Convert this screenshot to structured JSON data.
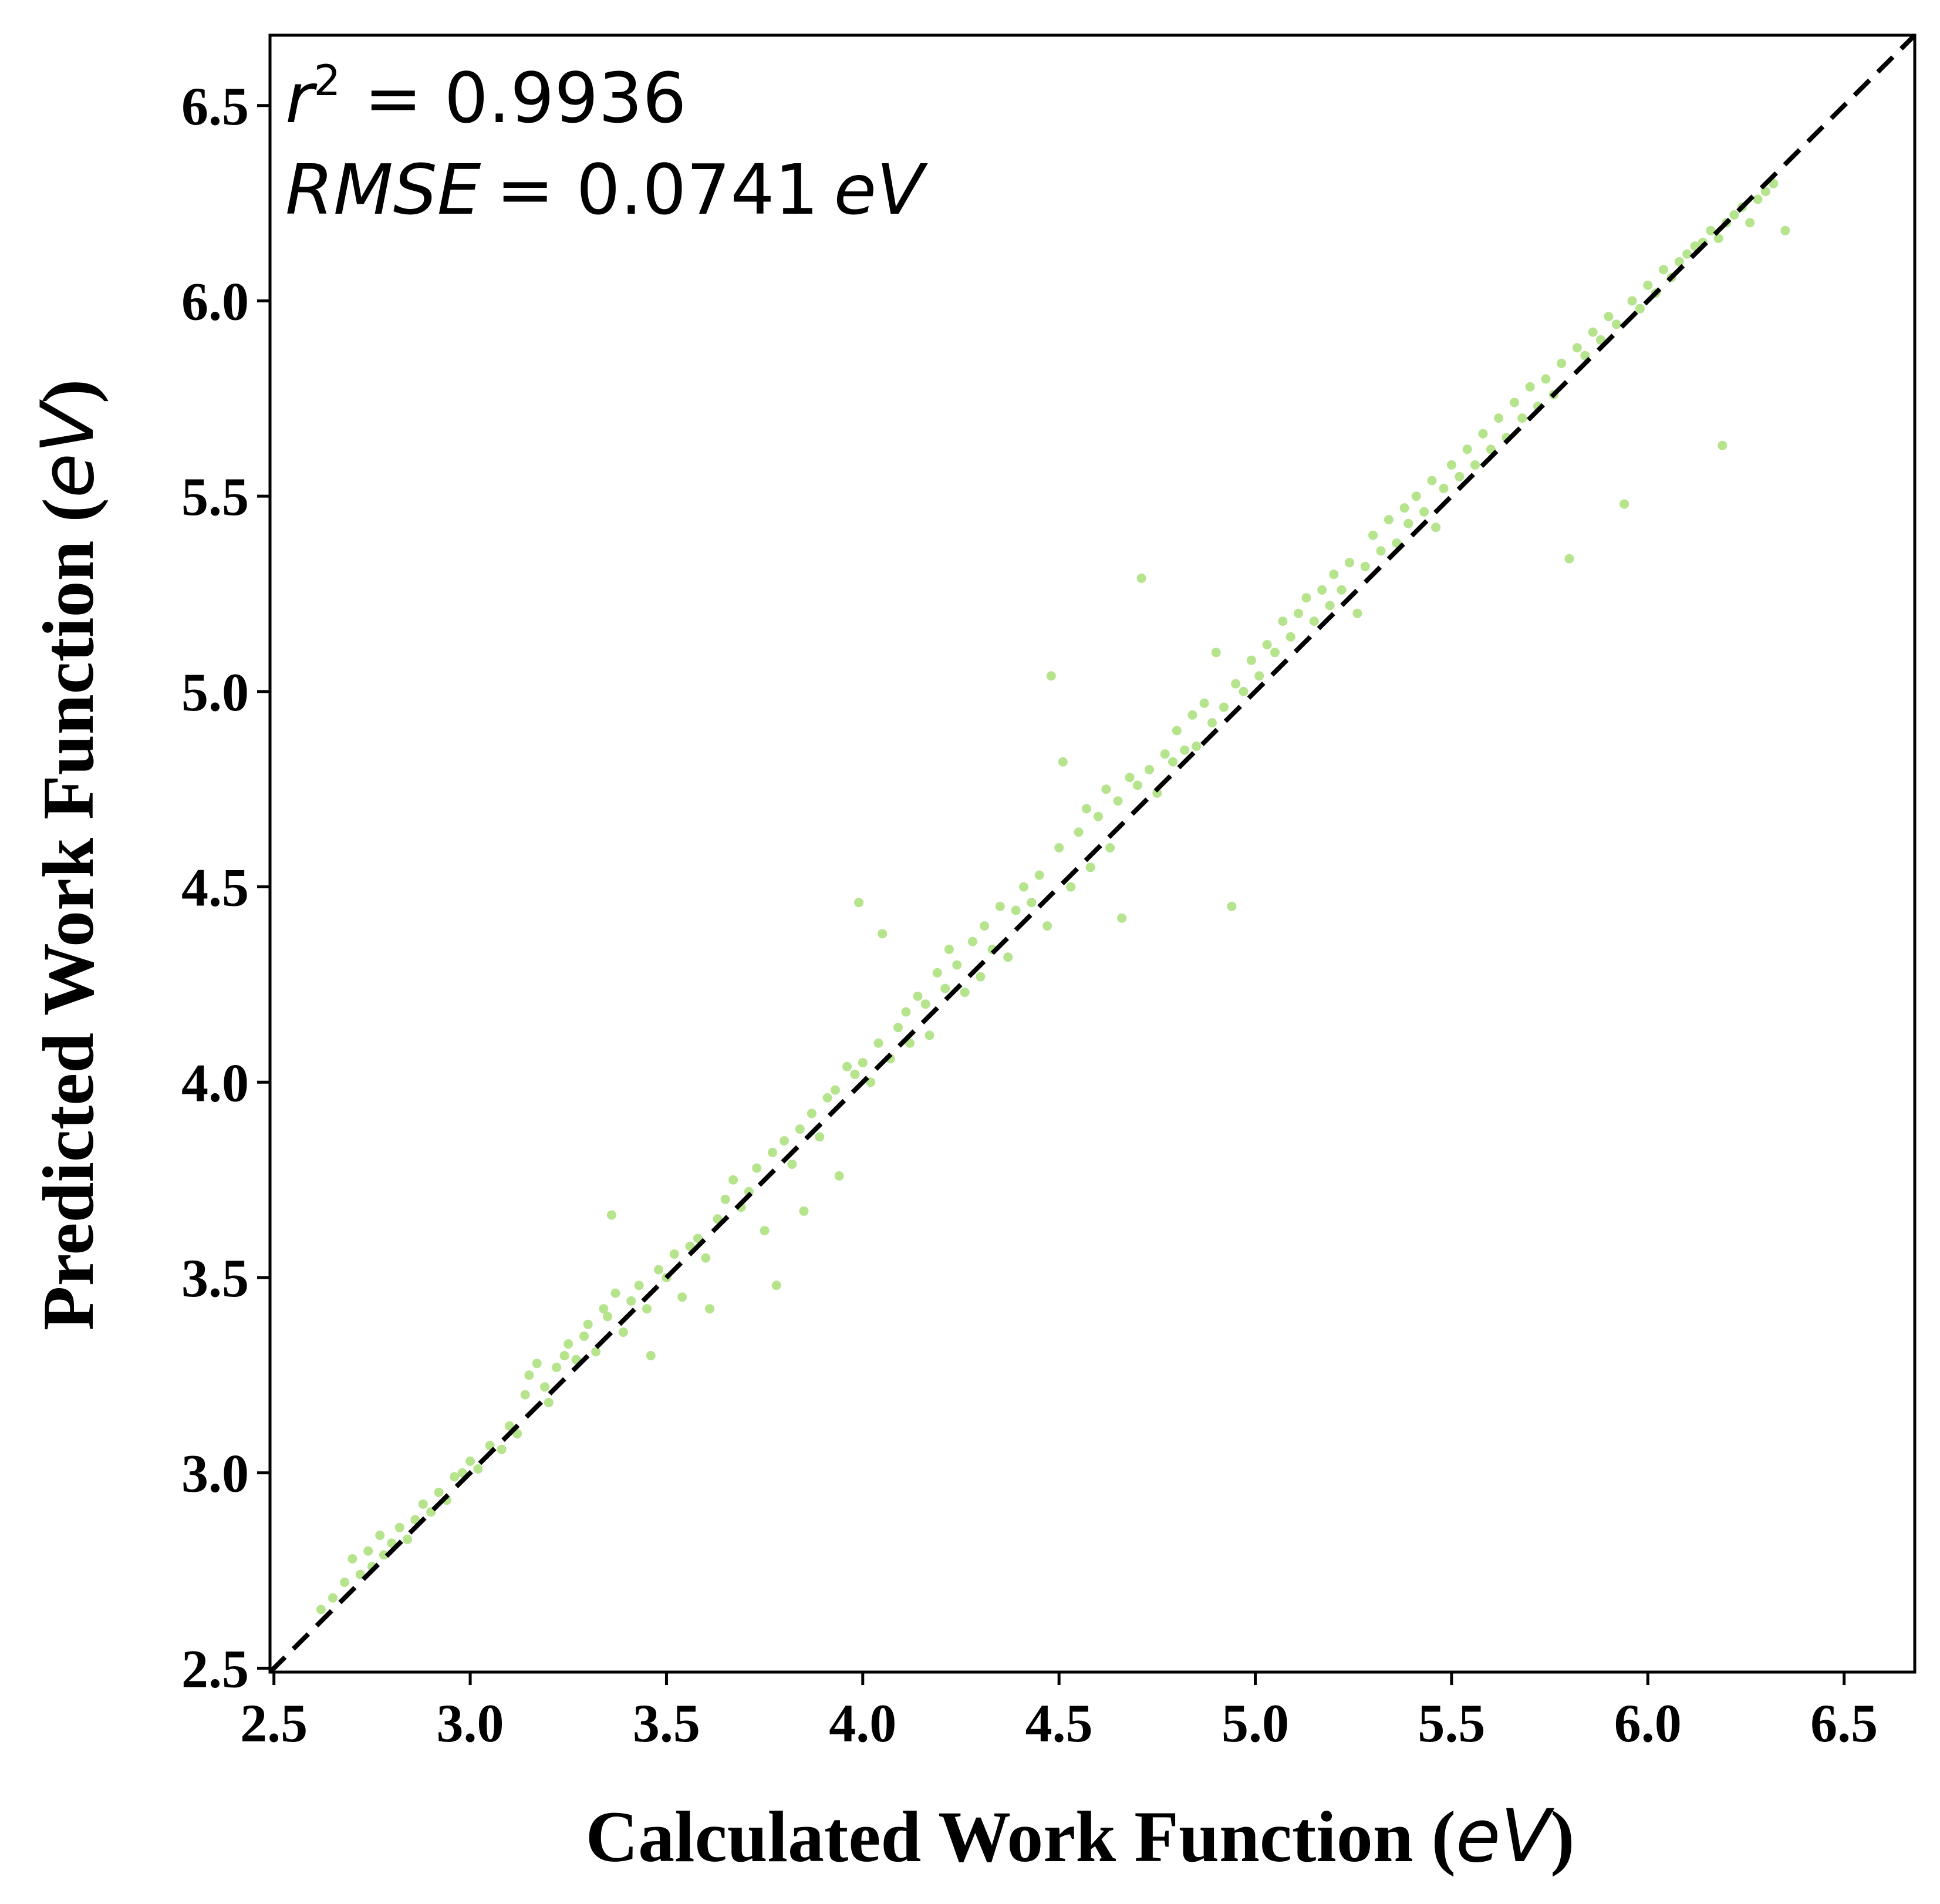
{
  "chart_data": {
    "type": "scatter",
    "xlabel": "Calculated Work Function",
    "ylabel": "Predicted  Work Function",
    "unit": "eV",
    "xlim": [
      2.49,
      6.68
    ],
    "ylim": [
      2.49,
      6.68
    ],
    "x_ticks": [
      "2.5",
      "3.0",
      "3.5",
      "4.0",
      "4.5",
      "5.0",
      "5.5",
      "6.0",
      "6.5"
    ],
    "y_ticks": [
      "2.5",
      "3.0",
      "3.5",
      "4.0",
      "4.5",
      "5.0",
      "5.5",
      "6.0",
      "6.5"
    ],
    "grid": false,
    "point_color": "#b5e48c",
    "reference_line": {
      "style": "dashed",
      "color": "#000000",
      "from": [
        2.49,
        2.49
      ],
      "to": [
        6.68,
        6.68
      ]
    },
    "annotation": {
      "r2_symbol": "r",
      "r2_exp": "2",
      "r2_value": "= 0.9936",
      "rmse_symbol": "RMSE",
      "rmse_value": "= 0.0741",
      "rmse_unit": "eV"
    },
    "points": [
      [
        2.62,
        2.65
      ],
      [
        2.65,
        2.68
      ],
      [
        2.68,
        2.72
      ],
      [
        2.7,
        2.78
      ],
      [
        2.72,
        2.74
      ],
      [
        2.74,
        2.8
      ],
      [
        2.75,
        2.76
      ],
      [
        2.77,
        2.84
      ],
      [
        2.78,
        2.79
      ],
      [
        2.8,
        2.82
      ],
      [
        2.82,
        2.86
      ],
      [
        2.84,
        2.83
      ],
      [
        2.86,
        2.88
      ],
      [
        2.88,
        2.92
      ],
      [
        2.9,
        2.9
      ],
      [
        2.92,
        2.95
      ],
      [
        2.94,
        2.93
      ],
      [
        2.96,
        2.99
      ],
      [
        2.98,
        3.0
      ],
      [
        3.0,
        3.03
      ],
      [
        3.02,
        3.01
      ],
      [
        3.05,
        3.07
      ],
      [
        3.08,
        3.06
      ],
      [
        3.1,
        3.12
      ],
      [
        3.12,
        3.1
      ],
      [
        3.14,
        3.2
      ],
      [
        3.15,
        3.25
      ],
      [
        3.17,
        3.28
      ],
      [
        3.19,
        3.22
      ],
      [
        3.2,
        3.18
      ],
      [
        3.22,
        3.27
      ],
      [
        3.24,
        3.3
      ],
      [
        3.25,
        3.33
      ],
      [
        3.27,
        3.29
      ],
      [
        3.29,
        3.35
      ],
      [
        3.3,
        3.38
      ],
      [
        3.32,
        3.31
      ],
      [
        3.34,
        3.42
      ],
      [
        3.35,
        3.4
      ],
      [
        3.36,
        3.66
      ],
      [
        3.37,
        3.46
      ],
      [
        3.39,
        3.36
      ],
      [
        3.41,
        3.44
      ],
      [
        3.43,
        3.48
      ],
      [
        3.45,
        3.42
      ],
      [
        3.46,
        3.3
      ],
      [
        3.48,
        3.52
      ],
      [
        3.5,
        3.5
      ],
      [
        3.52,
        3.56
      ],
      [
        3.54,
        3.45
      ],
      [
        3.56,
        3.58
      ],
      [
        3.58,
        3.6
      ],
      [
        3.6,
        3.55
      ],
      [
        3.61,
        3.42
      ],
      [
        3.63,
        3.65
      ],
      [
        3.65,
        3.7
      ],
      [
        3.67,
        3.75
      ],
      [
        3.69,
        3.68
      ],
      [
        3.71,
        3.72
      ],
      [
        3.73,
        3.78
      ],
      [
        3.75,
        3.62
      ],
      [
        3.77,
        3.82
      ],
      [
        3.78,
        3.48
      ],
      [
        3.8,
        3.85
      ],
      [
        3.82,
        3.79
      ],
      [
        3.84,
        3.88
      ],
      [
        3.85,
        3.67
      ],
      [
        3.87,
        3.92
      ],
      [
        3.89,
        3.86
      ],
      [
        3.91,
        3.96
      ],
      [
        3.93,
        3.98
      ],
      [
        3.94,
        3.76
      ],
      [
        3.96,
        4.04
      ],
      [
        3.98,
        4.02
      ],
      [
        3.99,
        4.46
      ],
      [
        4.0,
        4.05
      ],
      [
        4.02,
        4.0
      ],
      [
        4.04,
        4.1
      ],
      [
        4.05,
        4.38
      ],
      [
        4.07,
        4.06
      ],
      [
        4.09,
        4.14
      ],
      [
        4.11,
        4.18
      ],
      [
        4.12,
        4.1
      ],
      [
        4.14,
        4.22
      ],
      [
        4.16,
        4.2
      ],
      [
        4.17,
        4.12
      ],
      [
        4.19,
        4.28
      ],
      [
        4.21,
        4.24
      ],
      [
        4.22,
        4.34
      ],
      [
        4.24,
        4.3
      ],
      [
        4.26,
        4.23
      ],
      [
        4.28,
        4.36
      ],
      [
        4.3,
        4.27
      ],
      [
        4.31,
        4.4
      ],
      [
        4.33,
        4.34
      ],
      [
        4.35,
        4.45
      ],
      [
        4.37,
        4.32
      ],
      [
        4.39,
        4.44
      ],
      [
        4.41,
        4.5
      ],
      [
        4.43,
        4.46
      ],
      [
        4.45,
        4.53
      ],
      [
        4.47,
        4.4
      ],
      [
        4.48,
        5.04
      ],
      [
        4.5,
        4.6
      ],
      [
        4.51,
        4.82
      ],
      [
        4.53,
        4.5
      ],
      [
        4.55,
        4.64
      ],
      [
        4.57,
        4.7
      ],
      [
        4.58,
        4.55
      ],
      [
        4.6,
        4.68
      ],
      [
        4.62,
        4.75
      ],
      [
        4.63,
        4.6
      ],
      [
        4.65,
        4.72
      ],
      [
        4.66,
        4.42
      ],
      [
        4.68,
        4.78
      ],
      [
        4.7,
        4.76
      ],
      [
        4.71,
        5.29
      ],
      [
        4.73,
        4.8
      ],
      [
        4.75,
        4.74
      ],
      [
        4.77,
        4.84
      ],
      [
        4.79,
        4.82
      ],
      [
        4.8,
        4.9
      ],
      [
        4.82,
        4.85
      ],
      [
        4.84,
        4.94
      ],
      [
        4.85,
        4.86
      ],
      [
        4.87,
        4.97
      ],
      [
        4.89,
        4.92
      ],
      [
        4.9,
        5.1
      ],
      [
        4.92,
        4.96
      ],
      [
        4.94,
        4.45
      ],
      [
        4.95,
        5.02
      ],
      [
        4.97,
        5.0
      ],
      [
        4.99,
        5.08
      ],
      [
        5.01,
        5.04
      ],
      [
        5.03,
        5.12
      ],
      [
        5.05,
        5.1
      ],
      [
        5.07,
        5.18
      ],
      [
        5.09,
        5.14
      ],
      [
        5.11,
        5.2
      ],
      [
        5.13,
        5.24
      ],
      [
        5.15,
        5.18
      ],
      [
        5.17,
        5.26
      ],
      [
        5.19,
        5.22
      ],
      [
        5.2,
        5.3
      ],
      [
        5.22,
        5.26
      ],
      [
        5.24,
        5.33
      ],
      [
        5.26,
        5.2
      ],
      [
        5.28,
        5.32
      ],
      [
        5.3,
        5.4
      ],
      [
        5.32,
        5.36
      ],
      [
        5.34,
        5.44
      ],
      [
        5.36,
        5.38
      ],
      [
        5.38,
        5.47
      ],
      [
        5.39,
        5.43
      ],
      [
        5.41,
        5.5
      ],
      [
        5.43,
        5.46
      ],
      [
        5.45,
        5.54
      ],
      [
        5.46,
        5.42
      ],
      [
        5.48,
        5.52
      ],
      [
        5.5,
        5.58
      ],
      [
        5.52,
        5.55
      ],
      [
        5.54,
        5.62
      ],
      [
        5.56,
        5.58
      ],
      [
        5.58,
        5.66
      ],
      [
        5.6,
        5.62
      ],
      [
        5.62,
        5.7
      ],
      [
        5.64,
        5.65
      ],
      [
        5.66,
        5.74
      ],
      [
        5.68,
        5.7
      ],
      [
        5.7,
        5.78
      ],
      [
        5.72,
        5.73
      ],
      [
        5.74,
        5.8
      ],
      [
        5.76,
        5.76
      ],
      [
        5.78,
        5.84
      ],
      [
        5.8,
        5.34
      ],
      [
        5.82,
        5.88
      ],
      [
        5.84,
        5.86
      ],
      [
        5.86,
        5.92
      ],
      [
        5.88,
        5.9
      ],
      [
        5.9,
        5.96
      ],
      [
        5.92,
        5.94
      ],
      [
        5.94,
        5.48
      ],
      [
        5.96,
        6.0
      ],
      [
        5.98,
        5.98
      ],
      [
        6.0,
        6.04
      ],
      [
        6.02,
        6.02
      ],
      [
        6.04,
        6.08
      ],
      [
        6.06,
        6.06
      ],
      [
        6.08,
        6.1
      ],
      [
        6.1,
        6.12
      ],
      [
        6.12,
        6.14
      ],
      [
        6.14,
        6.15
      ],
      [
        6.16,
        6.18
      ],
      [
        6.18,
        6.16
      ],
      [
        6.19,
        5.63
      ],
      [
        6.2,
        6.2
      ],
      [
        6.22,
        6.22
      ],
      [
        6.24,
        6.24
      ],
      [
        6.26,
        6.2
      ],
      [
        6.28,
        6.26
      ],
      [
        6.3,
        6.28
      ],
      [
        6.32,
        6.3
      ],
      [
        6.35,
        6.18
      ]
    ]
  }
}
